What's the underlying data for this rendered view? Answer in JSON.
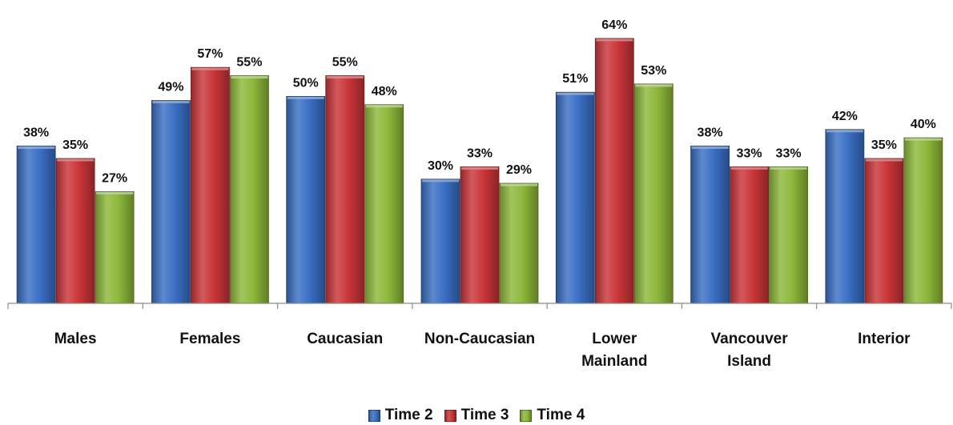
{
  "chart_data": {
    "type": "bar",
    "categories": [
      [
        "Males"
      ],
      [
        "Females"
      ],
      [
        "Caucasian"
      ],
      [
        "Non-Caucasian"
      ],
      [
        "Lower",
        "Mainland"
      ],
      [
        "Vancouver",
        "Island"
      ],
      [
        "Interior"
      ]
    ],
    "series": [
      {
        "name": "Time 2",
        "color": "#3A6FC4",
        "values": [
          38,
          49,
          50,
          30,
          51,
          38,
          42
        ],
        "labels": [
          "38%",
          "49%",
          "50%",
          "30%",
          "51%",
          "38%",
          "42%"
        ]
      },
      {
        "name": "Time 3",
        "color": "#C93538",
        "values": [
          35,
          57,
          55,
          33,
          64,
          33,
          35
        ],
        "labels": [
          "35%",
          "57%",
          "55%",
          "33%",
          "64%",
          "33%",
          "35%"
        ]
      },
      {
        "name": "Time 4",
        "color": "#8DB83A",
        "values": [
          27,
          55,
          48,
          29,
          53,
          33,
          40
        ],
        "labels": [
          "27%",
          "55%",
          "48%",
          "29%",
          "53%",
          "33%",
          "40%"
        ]
      }
    ],
    "ylim": [
      0,
      64
    ],
    "grid": false,
    "legend_position": "bottom"
  }
}
